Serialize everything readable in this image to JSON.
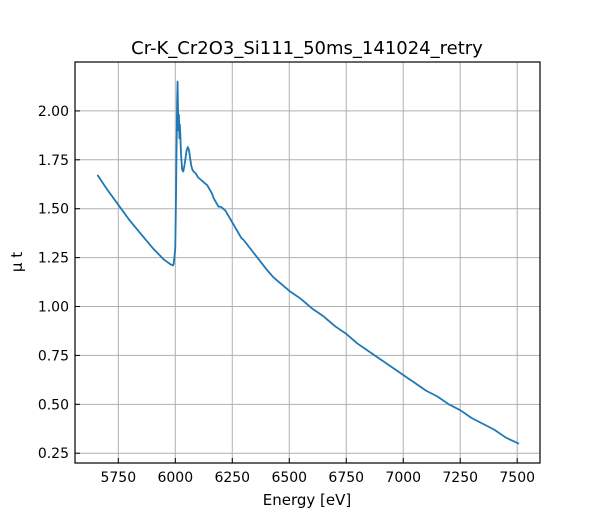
{
  "chart_data": {
    "type": "line",
    "title": "Cr-K_Cr2O3_Si111_50ms_141024_retry",
    "xlabel": "Energy [eV]",
    "ylabel": "μ t",
    "xlim": [
      5560,
      7600
    ],
    "ylim": [
      0.2,
      2.25
    ],
    "grid": true,
    "x_ticks": [
      5750,
      6000,
      6250,
      6500,
      6750,
      7000,
      7250,
      7500
    ],
    "y_ticks": [
      0.25,
      0.5,
      0.75,
      1.0,
      1.25,
      1.5,
      1.75,
      2.0
    ],
    "x_tick_labels": [
      "5750",
      "6000",
      "6250",
      "6500",
      "6750",
      "7000",
      "7250",
      "7500"
    ],
    "y_tick_labels": [
      "0.25",
      "0.50",
      "0.75",
      "1.00",
      "1.25",
      "1.50",
      "1.75",
      "2.00"
    ],
    "series": [
      {
        "color": "#1f77b4",
        "x": [
          5660,
          5700,
          5750,
          5800,
          5850,
          5900,
          5950,
          5980,
          5990,
          5993,
          5996,
          6000,
          6003,
          6006,
          6008,
          6010,
          6012,
          6014,
          6016,
          6018,
          6020,
          6022,
          6025,
          6030,
          6035,
          6040,
          6045,
          6050,
          6055,
          6060,
          6065,
          6070,
          6075,
          6080,
          6090,
          6100,
          6110,
          6120,
          6130,
          6140,
          6150,
          6160,
          6170,
          6180,
          6190,
          6200,
          6210,
          6220,
          6230,
          6240,
          6250,
          6260,
          6270,
          6280,
          6290,
          6300,
          6320,
          6340,
          6360,
          6380,
          6400,
          6430,
          6460,
          6480,
          6500,
          6550,
          6600,
          6650,
          6700,
          6750,
          6800,
          6850,
          6900,
          6950,
          7000,
          7050,
          7100,
          7150,
          7200,
          7250,
          7300,
          7350,
          7400,
          7450,
          7505
        ],
        "y": [
          1.67,
          1.6,
          1.52,
          1.44,
          1.37,
          1.3,
          1.24,
          1.215,
          1.21,
          1.22,
          1.25,
          1.3,
          1.55,
          1.85,
          2.05,
          2.15,
          2.0,
          1.9,
          1.98,
          1.86,
          1.93,
          1.88,
          1.78,
          1.7,
          1.69,
          1.72,
          1.76,
          1.8,
          1.815,
          1.8,
          1.76,
          1.72,
          1.7,
          1.69,
          1.68,
          1.66,
          1.65,
          1.64,
          1.63,
          1.62,
          1.6,
          1.58,
          1.55,
          1.53,
          1.51,
          1.51,
          1.5,
          1.49,
          1.47,
          1.45,
          1.43,
          1.41,
          1.39,
          1.37,
          1.35,
          1.34,
          1.31,
          1.28,
          1.25,
          1.22,
          1.19,
          1.15,
          1.12,
          1.1,
          1.08,
          1.04,
          0.99,
          0.95,
          0.9,
          0.86,
          0.81,
          0.77,
          0.73,
          0.69,
          0.65,
          0.61,
          0.57,
          0.54,
          0.5,
          0.47,
          0.43,
          0.4,
          0.37,
          0.33,
          0.3
        ]
      }
    ]
  }
}
